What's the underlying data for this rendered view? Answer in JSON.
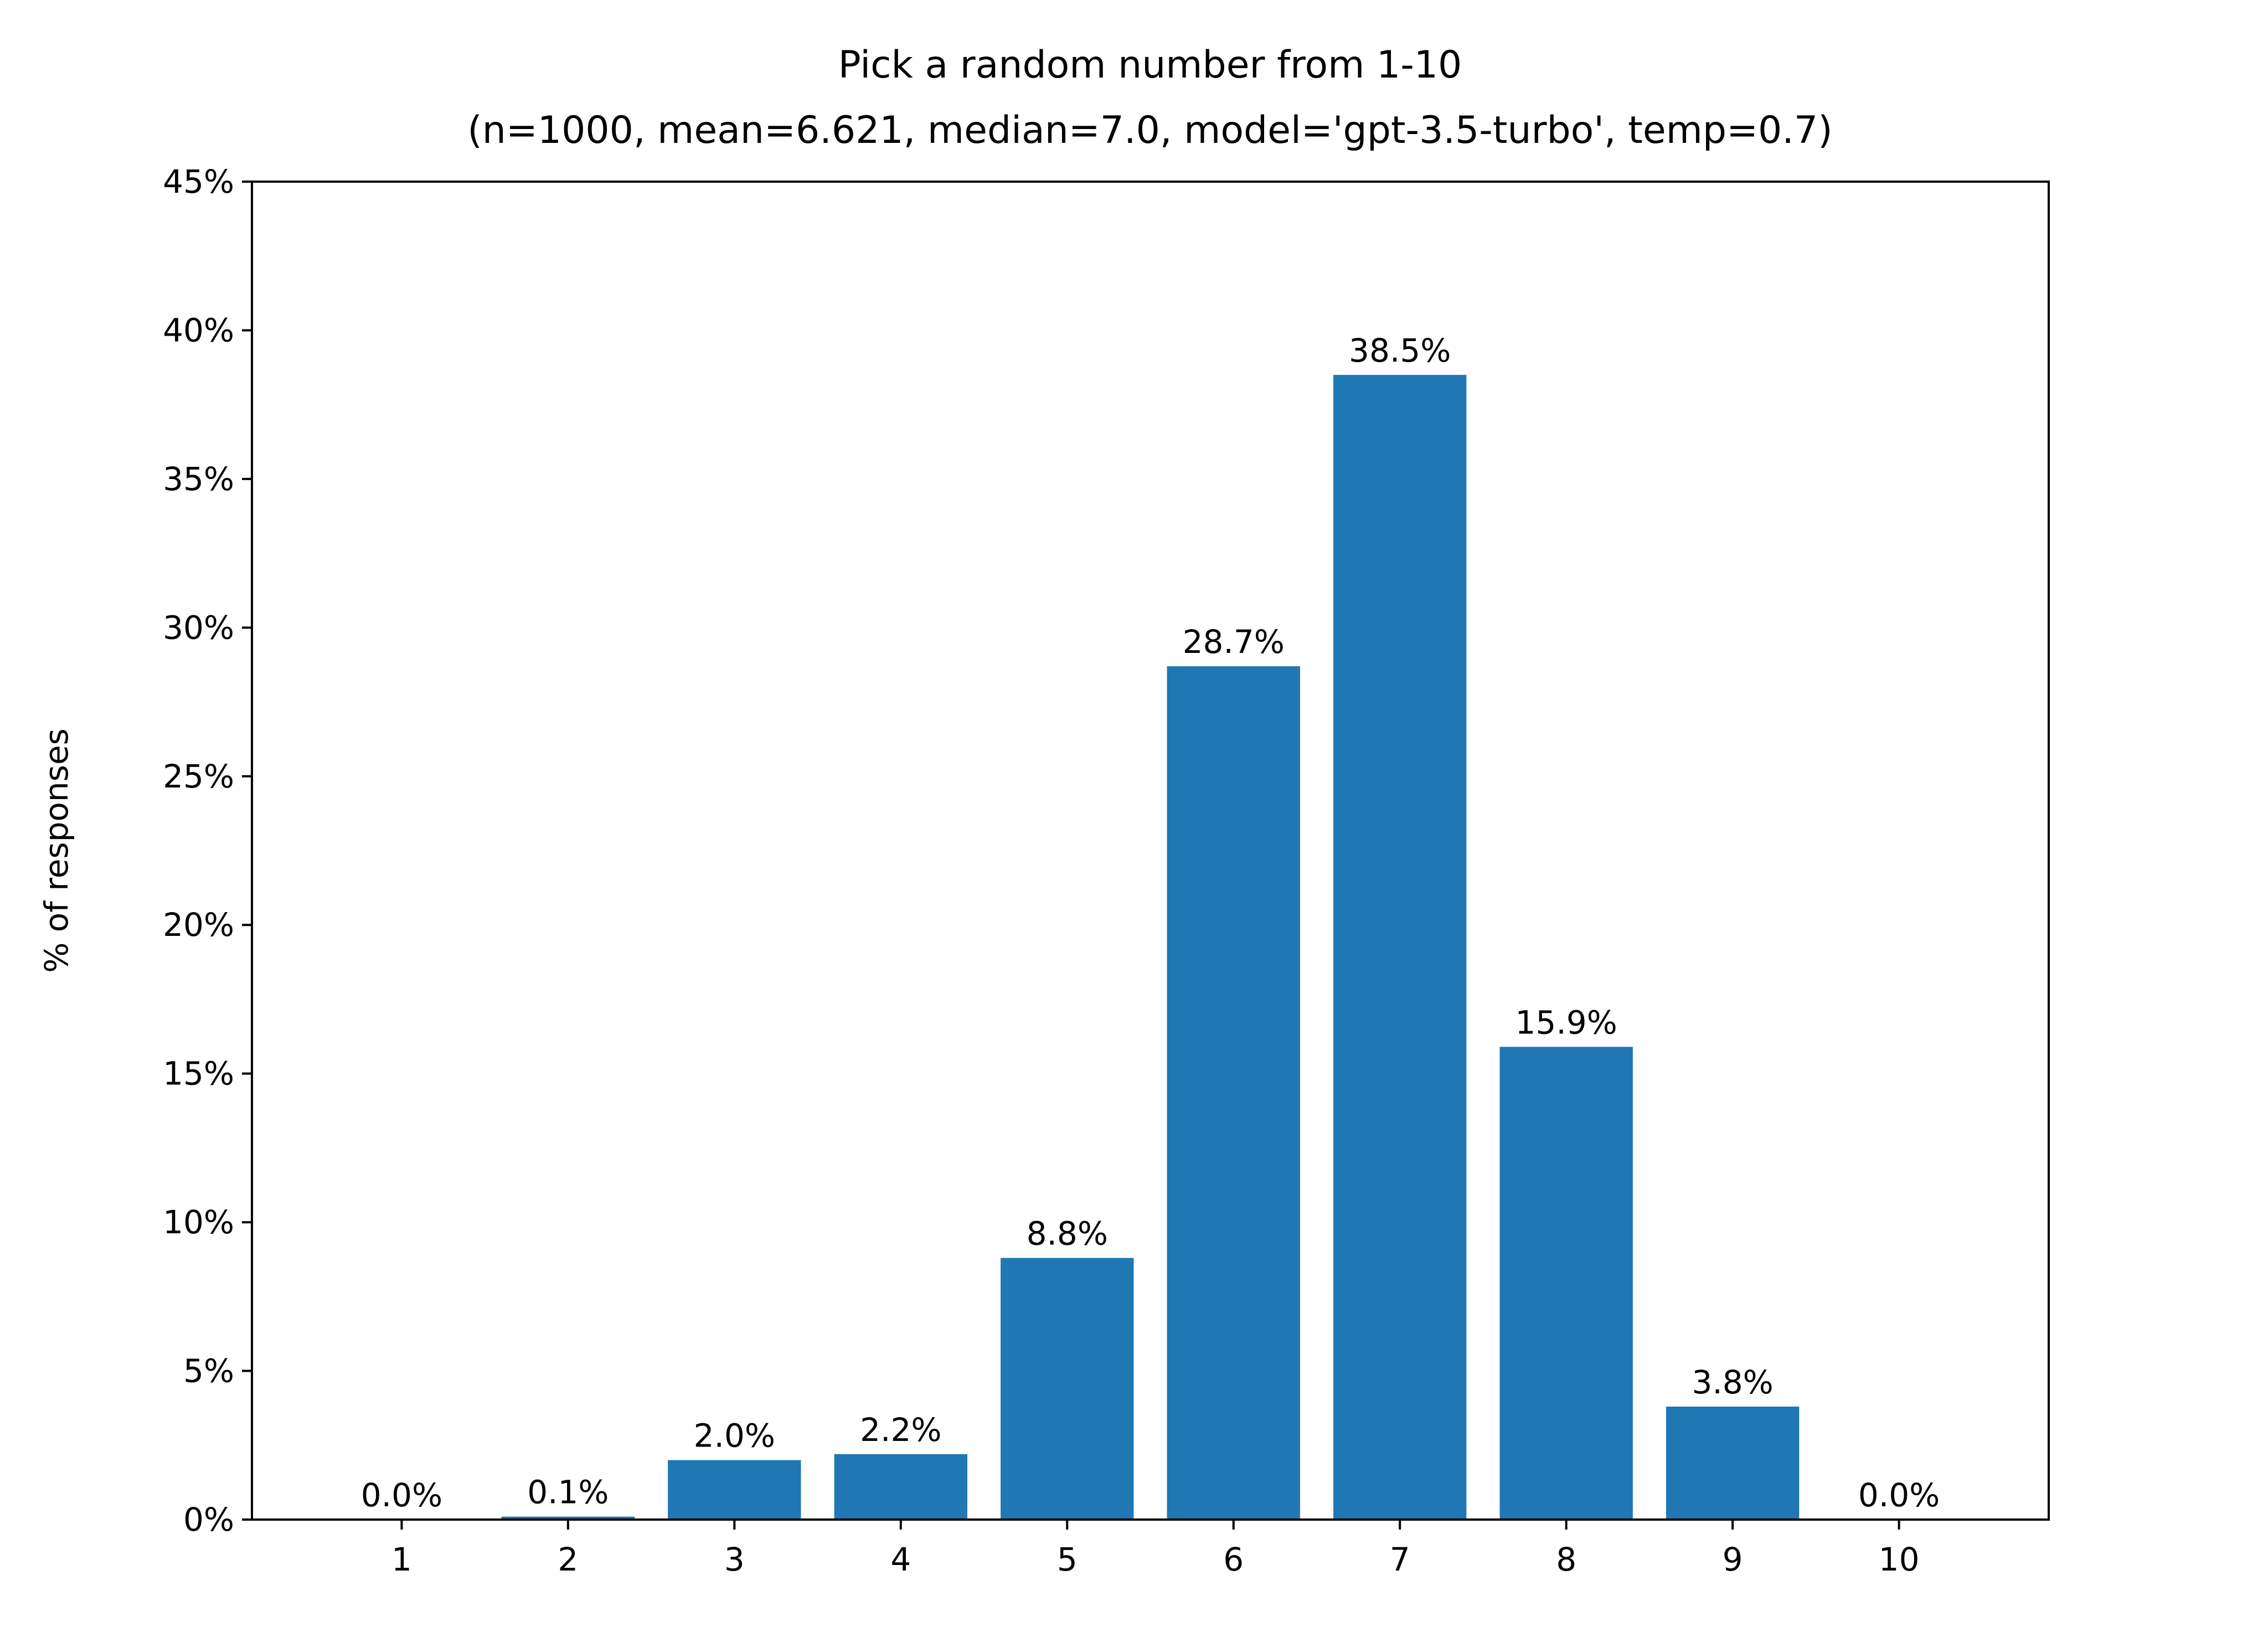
{
  "chart_data": {
    "type": "bar",
    "title": "Pick a random number from 1-10",
    "subtitle": "(n=1000, mean=6.621, median=7.0, model='gpt-3.5-turbo', temp=0.7)",
    "xlabel": "",
    "ylabel": "% of responses",
    "categories": [
      "1",
      "2",
      "3",
      "4",
      "5",
      "6",
      "7",
      "8",
      "9",
      "10"
    ],
    "values": [
      0.0,
      0.1,
      2.0,
      2.2,
      8.8,
      28.7,
      38.5,
      15.9,
      3.8,
      0.0
    ],
    "data_labels": [
      "0.0%",
      "0.1%",
      "2.0%",
      "2.2%",
      "8.8%",
      "28.7%",
      "38.5%",
      "15.9%",
      "3.8%",
      "0.0%"
    ],
    "ylim": [
      0,
      45
    ],
    "yticks": [
      0,
      5,
      10,
      15,
      20,
      25,
      30,
      35,
      40,
      45
    ],
    "ytick_labels": [
      "0%",
      "5%",
      "10%",
      "15%",
      "20%",
      "25%",
      "30%",
      "35%",
      "40%",
      "45%"
    ],
    "grid": false,
    "legend": "none",
    "bar_color": "#1f77b4"
  }
}
